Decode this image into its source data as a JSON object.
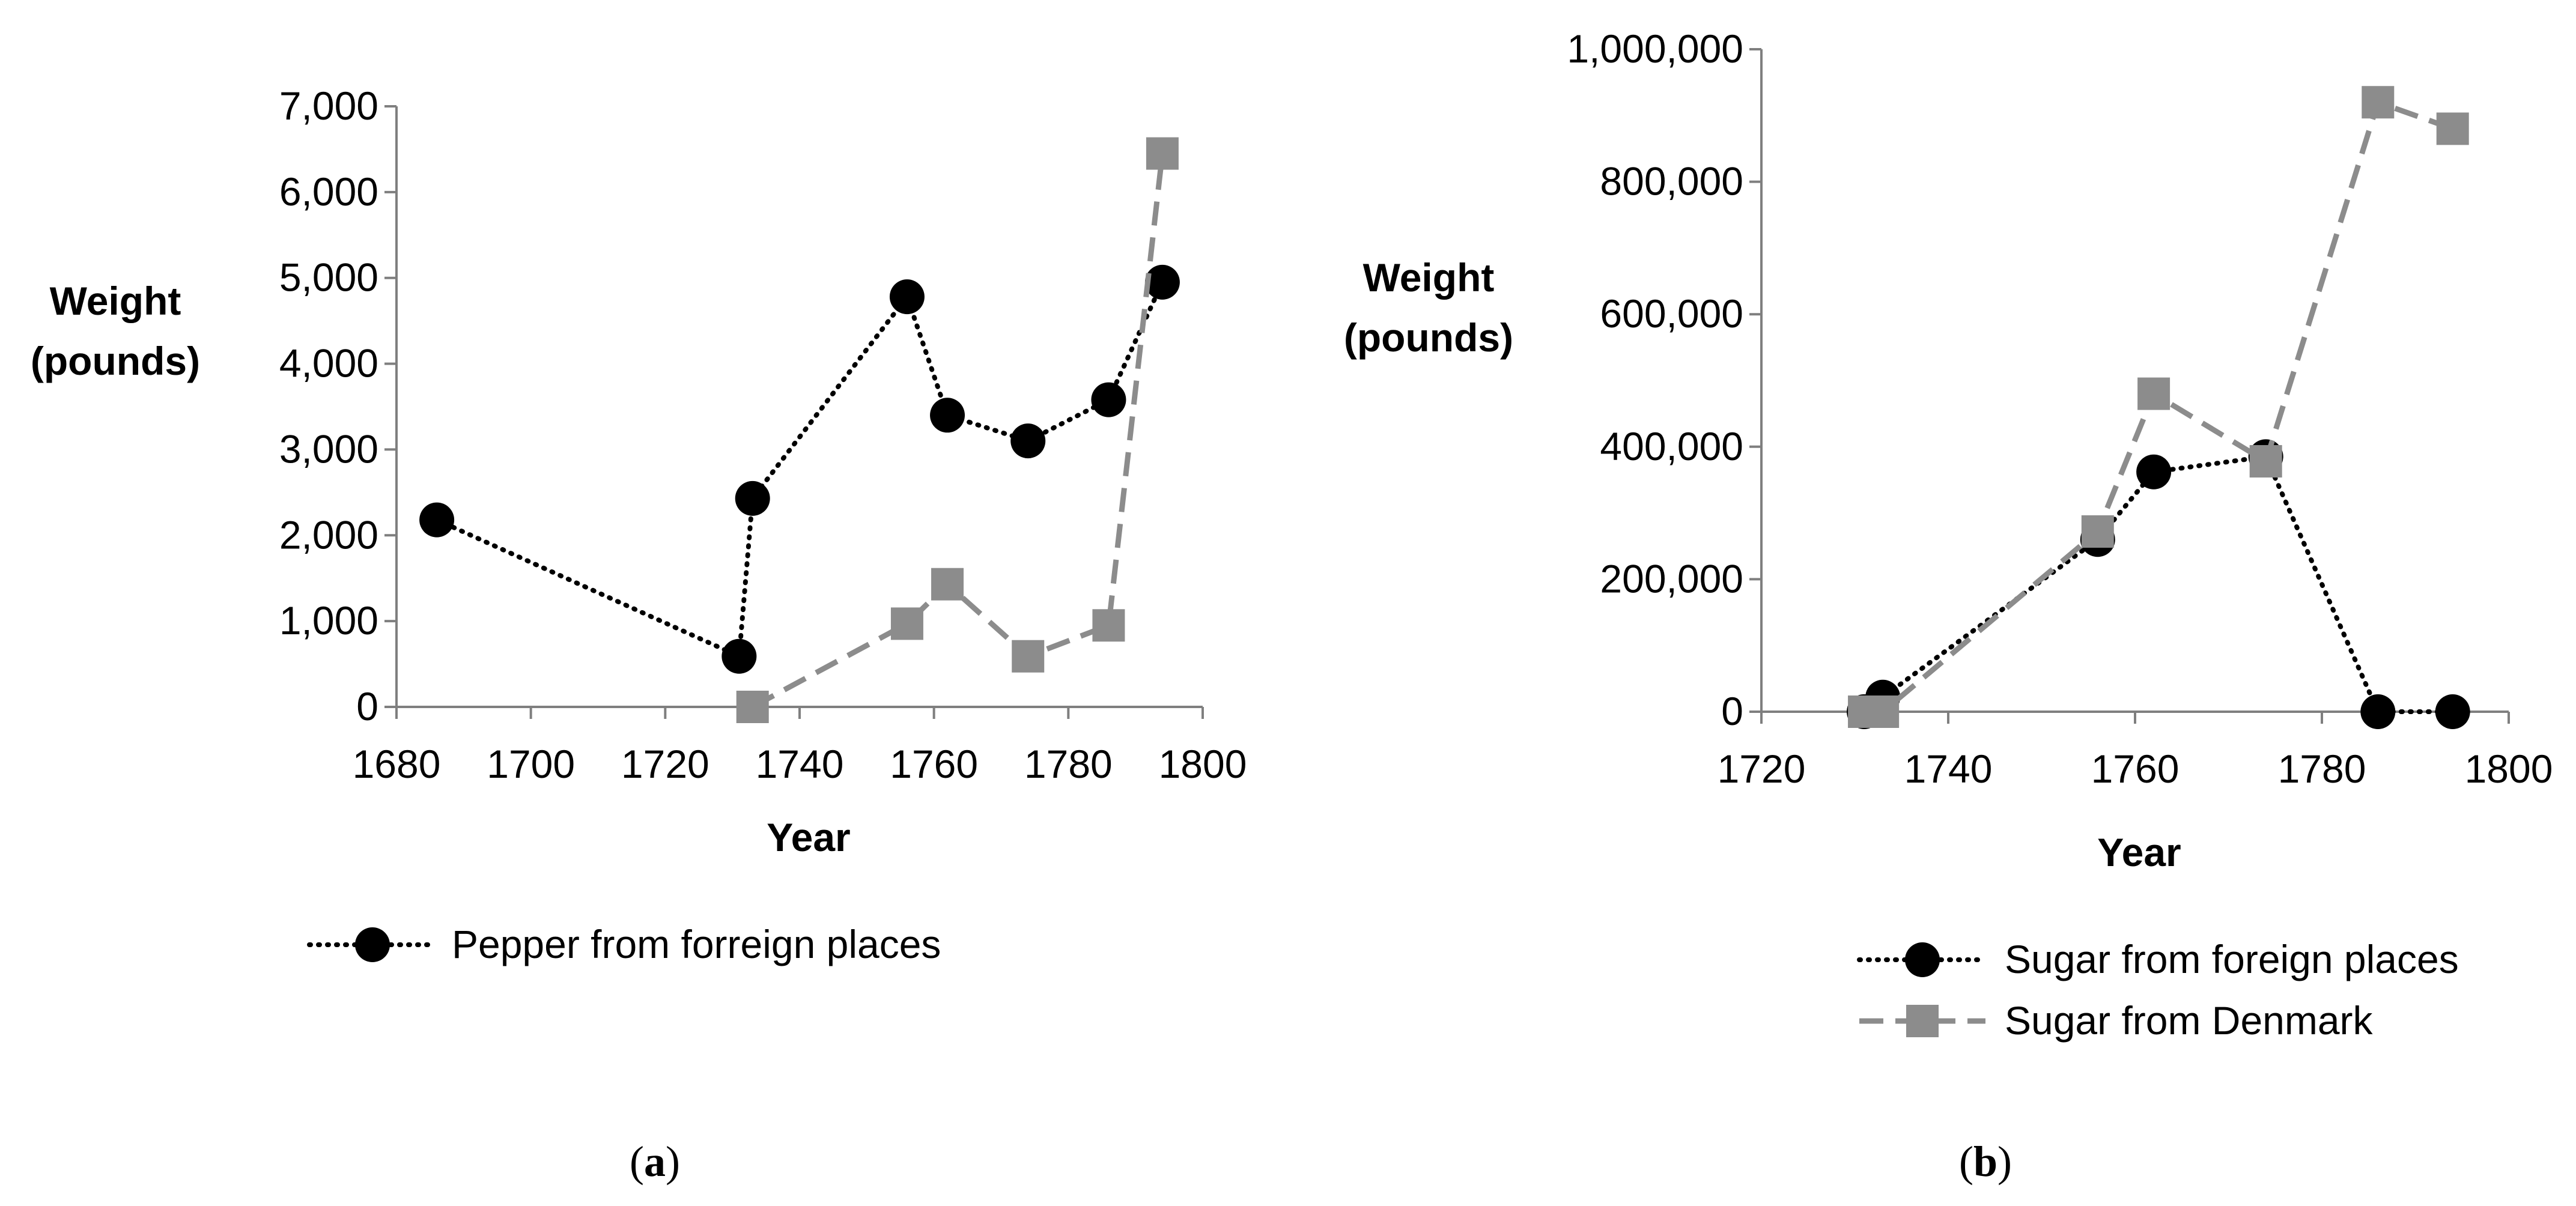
{
  "colors": {
    "series_foreign": "#000000",
    "series_denmark": "#8c8c8c",
    "axis": "#7f7f7f"
  },
  "panel_a_label": {
    "open": "(",
    "letter": "a",
    "close": ")"
  },
  "panel_b_label": {
    "open": "(",
    "letter": "b",
    "close": ")"
  },
  "chart_data": [
    {
      "type": "line",
      "xlabel": "Year",
      "ylabel_lines": [
        "Weight",
        "(pounds)"
      ],
      "xlim": [
        1680,
        1800
      ],
      "ylim": [
        0,
        7000
      ],
      "x_ticks": [
        1680,
        1700,
        1720,
        1740,
        1760,
        1780,
        1800
      ],
      "x_tick_labels": [
        "1680",
        "1700",
        "1720",
        "1740",
        "1760",
        "1780",
        "1800"
      ],
      "y_ticks": [
        0,
        1000,
        2000,
        3000,
        4000,
        5000,
        6000,
        7000
      ],
      "y_tick_labels": [
        "0",
        "1,000",
        "2,000",
        "3,000",
        "4,000",
        "5,000",
        "6,000",
        "7,000"
      ],
      "grid": false,
      "legend_position": "bottom",
      "series": [
        {
          "name": "Pepper from forreign places",
          "marker": "circle",
          "line_style": "dotted",
          "color": "#000000",
          "in_legend": true,
          "points": [
            [
              1686,
              2180
            ],
            [
              1731,
              590
            ],
            [
              1733,
              2430
            ],
            [
              1756,
              4780
            ],
            [
              1762,
              3400
            ],
            [
              1774,
              3100
            ],
            [
              1786,
              3580
            ],
            [
              1794,
              4950
            ]
          ]
        },
        {
          "name": "",
          "marker": "square",
          "line_style": "dashed",
          "color": "#8c8c8c",
          "in_legend": false,
          "points": [
            [
              1733,
              0
            ],
            [
              1756,
              970
            ],
            [
              1762,
              1430
            ],
            [
              1774,
              590
            ],
            [
              1786,
              950
            ],
            [
              1794,
              6450
            ]
          ]
        }
      ]
    },
    {
      "type": "line",
      "xlabel": "Year",
      "ylabel_lines": [
        "Weight",
        "(pounds)"
      ],
      "xlim": [
        1720,
        1800
      ],
      "ylim": [
        0,
        1000000
      ],
      "x_ticks": [
        1720,
        1740,
        1760,
        1780,
        1800
      ],
      "x_tick_labels": [
        "1720",
        "1740",
        "1760",
        "1780",
        "1800"
      ],
      "y_ticks": [
        0,
        200000,
        400000,
        600000,
        800000,
        1000000
      ],
      "y_tick_labels": [
        "0",
        "200,000",
        "400,000",
        "600,000",
        "800,000",
        "1,000,000"
      ],
      "grid": false,
      "legend_position": "bottom-right",
      "series": [
        {
          "name": "Sugar from foreign places",
          "marker": "circle",
          "line_style": "dotted",
          "color": "#000000",
          "in_legend": true,
          "points": [
            [
              1731,
              0
            ],
            [
              1733,
              22000
            ],
            [
              1756,
              260000
            ],
            [
              1762,
              362000
            ],
            [
              1774,
              385000
            ],
            [
              1786,
              0
            ],
            [
              1794,
              0
            ]
          ]
        },
        {
          "name": "Sugar from Denmark",
          "marker": "square",
          "line_style": "dashed",
          "color": "#8c8c8c",
          "in_legend": true,
          "points": [
            [
              1731,
              0
            ],
            [
              1733,
              0
            ],
            [
              1756,
              272000
            ],
            [
              1762,
              480000
            ],
            [
              1774,
              378000
            ],
            [
              1786,
              920000
            ],
            [
              1794,
              880000
            ]
          ]
        }
      ]
    }
  ]
}
